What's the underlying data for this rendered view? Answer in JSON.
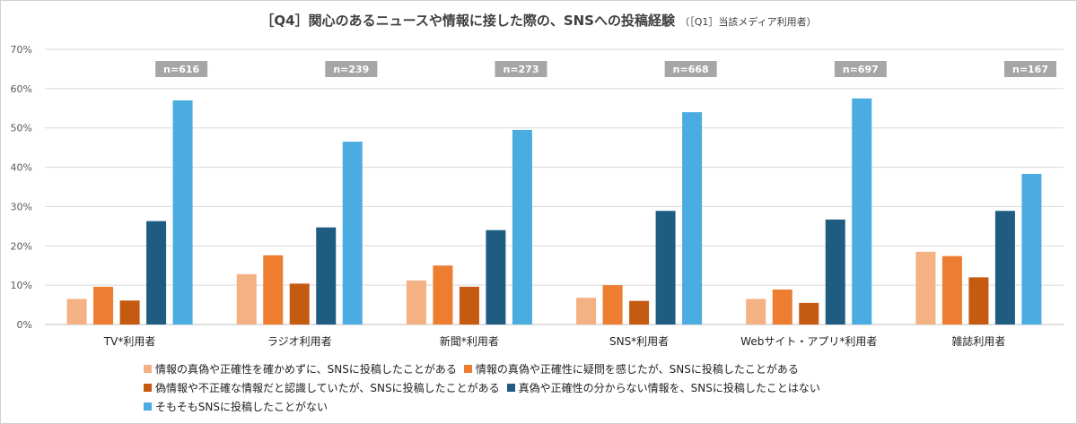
{
  "chart_data": {
    "type": "bar",
    "title": "［Q4］関心のあるニュースや情報に接した際の、SNSへの投稿経験",
    "subtitle": "（［Q1］当該メディア利用者）",
    "categories": [
      "TV*利用者",
      "ラジオ利用者",
      "新聞*利用者",
      "SNS*利用者",
      "Webサイト・アプリ*利用者",
      "雑誌利用者"
    ],
    "sample_sizes": [
      "n=616",
      "n=239",
      "n=273",
      "n=668",
      "n=697",
      "n=167"
    ],
    "ylim": [
      0,
      70
    ],
    "yticks": [
      "0%",
      "10%",
      "20%",
      "30%",
      "40%",
      "50%",
      "60%",
      "70%"
    ],
    "ytick_values": [
      0,
      10,
      20,
      30,
      40,
      50,
      60,
      70
    ],
    "grid": true,
    "legend_position": "bottom",
    "series": [
      {
        "name": "情報の真偽や正確性を確かめずに、SNSに投稿したことがある",
        "color": "#f4b183",
        "values": [
          6.5,
          12.8,
          11.2,
          6.8,
          6.5,
          18.5
        ]
      },
      {
        "name": "情報の真偽や正確性に疑問を感じたが、SNSに投稿したことがある",
        "color": "#ed7d31",
        "values": [
          9.6,
          17.6,
          15.0,
          10.0,
          8.9,
          17.4
        ]
      },
      {
        "name": "偽情報や不正確な情報だと認識していたが、SNSに投稿したことがある",
        "color": "#c55a11",
        "values": [
          6.1,
          10.4,
          9.6,
          6.0,
          5.5,
          12.0
        ]
      },
      {
        "name": "真偽や正確性の分からない情報を、SNSに投稿したことはない",
        "color": "#1f5c82",
        "values": [
          26.3,
          24.7,
          24.0,
          28.9,
          26.7,
          28.9
        ]
      },
      {
        "name": "そもそもSNSに投稿したことがない",
        "color": "#4aace0",
        "values": [
          57.0,
          46.5,
          49.5,
          54.0,
          57.5,
          38.3
        ]
      }
    ]
  }
}
